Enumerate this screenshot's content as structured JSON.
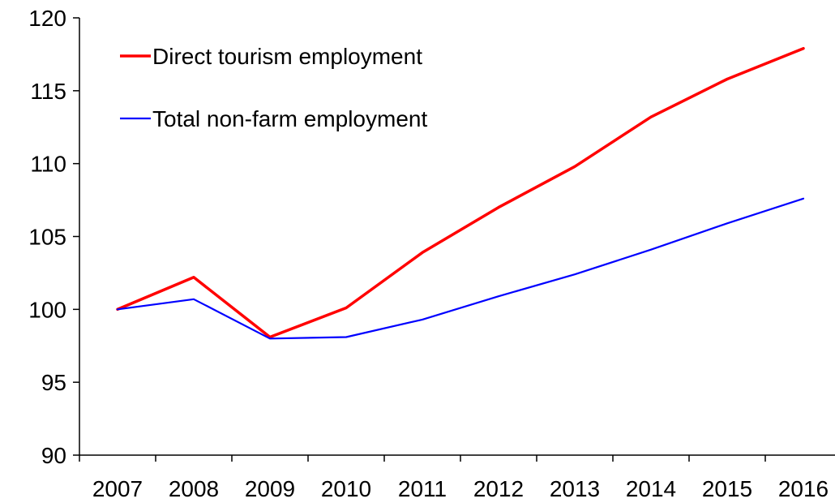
{
  "chart_data": {
    "type": "line",
    "title": "",
    "xlabel": "",
    "ylabel": "",
    "categories": [
      "2007",
      "2008",
      "2009",
      "2010",
      "2011",
      "2012",
      "2013",
      "2014",
      "2015",
      "2016"
    ],
    "ylim": [
      90,
      120
    ],
    "yticks": [
      "90",
      "95",
      "100",
      "105",
      "110",
      "115",
      "120"
    ],
    "grid": false,
    "legend_placement": "top-left",
    "series": [
      {
        "name": "Direct tourism employment",
        "color": "#ff0000",
        "values": [
          100.0,
          102.2,
          98.1,
          100.1,
          103.9,
          107.0,
          109.8,
          113.2,
          115.8,
          117.9
        ]
      },
      {
        "name": "Total non-farm employment",
        "color": "#0000ff",
        "values": [
          100.0,
          100.7,
          98.0,
          98.1,
          99.3,
          100.9,
          102.4,
          104.1,
          105.9,
          107.6
        ]
      }
    ]
  }
}
